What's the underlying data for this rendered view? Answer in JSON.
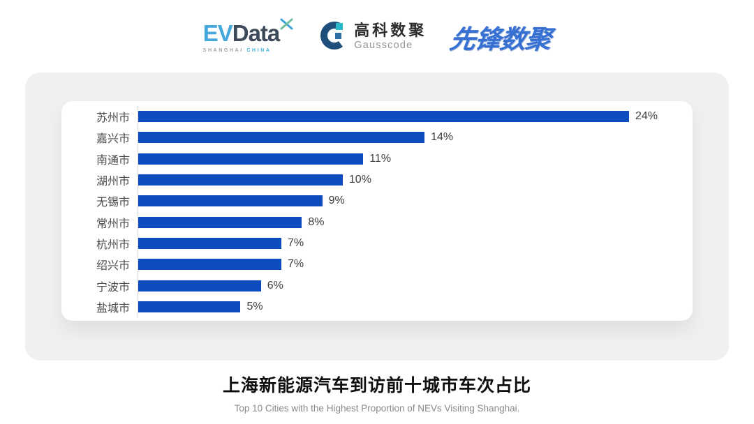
{
  "header": {
    "evdata": {
      "ev": "EV",
      "data": "Data",
      "sub_left": "SHANGHAI",
      "sub_right": "CHINA"
    },
    "gausscode": {
      "cn": "高科数聚",
      "en": "Gausscode"
    },
    "xianfeng": {
      "text": "先锋数聚"
    }
  },
  "chart_data": {
    "type": "bar",
    "orientation": "horizontal",
    "categories": [
      "苏州市",
      "嘉兴市",
      "南通市",
      "湖州市",
      "无锡市",
      "常州市",
      "杭州市",
      "绍兴市",
      "宁波市",
      "盐城市"
    ],
    "values": [
      24,
      14,
      11,
      10,
      9,
      8,
      7,
      7,
      6,
      5
    ],
    "value_suffix": "%",
    "xlim": [
      0,
      24
    ],
    "bar_color": "#0d4bc0",
    "grid": false,
    "legend": "none",
    "title": "上海新能源汽车到访前十城市车次占比",
    "subtitle": "Top 10 Cities with the Highest Proportion of  NEVs Visiting Shanghai."
  },
  "colors": {
    "panel_bg": "#f0f0f0",
    "card_bg": "#ffffff",
    "axis_line": "#d9d9d9",
    "bar_blue": "#0d4bc0",
    "evdata_cyan": "#45a7dc",
    "evdata_dark": "#3c4a5a",
    "xianfeng_blue": "#3670d2"
  }
}
